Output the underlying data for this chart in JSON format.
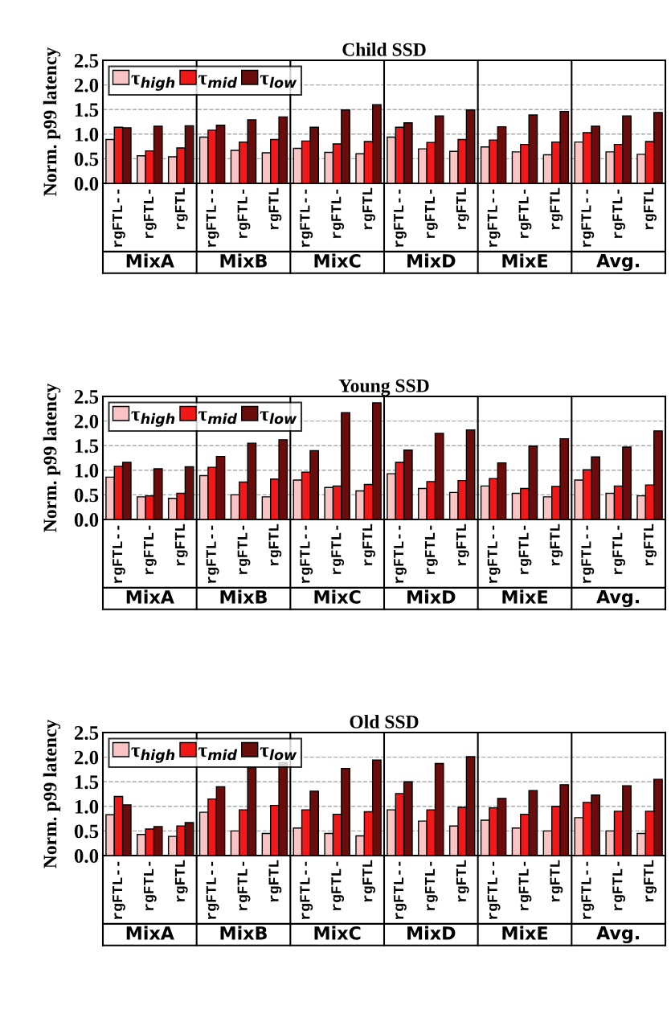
{
  "chart_data": [
    {
      "type": "bar",
      "title": "Child SSD",
      "ylabel": "Norm. p99 latency",
      "ylim": [
        0,
        2.5
      ],
      "yticks": [
        {
          "value": 0,
          "label": "0.0"
        },
        {
          "value": 0.5,
          "label": "0.5"
        },
        {
          "value": 1,
          "label": "1.0"
        },
        {
          "value": 1.5,
          "label": "1.5"
        },
        {
          "value": 2,
          "label": "2.0"
        },
        {
          "value": 2.5,
          "label": "2.5"
        }
      ],
      "grid": "y",
      "legend": "top left",
      "categories": [
        "rgFTL--",
        "rgFTL-",
        "rgFTL",
        "rgFTL--",
        "rgFTL-",
        "rgFTL",
        "rgFTL--",
        "rgFTL-",
        "rgFTL",
        "rgFTL--",
        "rgFTL-",
        "rgFTL",
        "rgFTL--",
        "rgFTL-",
        "rgFTL",
        "rgFTL--",
        "rgFTL-",
        "rgFTL"
      ],
      "annotations": [
        "MixA",
        "MixB",
        "MixC",
        "MixD",
        "MixE",
        "Avg."
      ],
      "series": [
        {
          "name": "τ$_{high}$",
          "color": "#fbc4c4",
          "values": [
            0.89,
            0.56,
            0.54,
            0.94,
            0.67,
            0.62,
            0.71,
            0.63,
            0.6,
            0.94,
            0.7,
            0.65,
            0.74,
            0.64,
            0.58,
            0.84,
            0.64,
            0.59
          ]
        },
        {
          "name": "τ$_{mid}$",
          "color": "#f01818",
          "values": [
            1.14,
            0.66,
            0.72,
            1.08,
            0.84,
            0.89,
            0.86,
            0.8,
            0.85,
            1.14,
            0.83,
            0.89,
            0.88,
            0.79,
            0.84,
            1.03,
            0.79,
            0.85
          ]
        },
        {
          "name": "τ$_{low}$",
          "color": "#6b0c0c",
          "values": [
            1.13,
            1.16,
            1.17,
            1.18,
            1.29,
            1.35,
            1.14,
            1.49,
            1.6,
            1.23,
            1.37,
            1.49,
            1.15,
            1.39,
            1.46,
            1.16,
            1.37,
            1.44
          ]
        }
      ]
    },
    {
      "type": "bar",
      "title": "Young SSD",
      "ylabel": "Norm. p99 latency",
      "ylim": [
        0,
        2.5
      ],
      "yticks": [
        {
          "value": 0,
          "label": "0.0"
        },
        {
          "value": 0.5,
          "label": "0.5"
        },
        {
          "value": 1,
          "label": "1.0"
        },
        {
          "value": 1.5,
          "label": "1.5"
        },
        {
          "value": 2,
          "label": "2.0"
        },
        {
          "value": 2.5,
          "label": "2.5"
        }
      ],
      "grid": "y",
      "legend": "top left",
      "categories": [
        "rgFTL--",
        "rgFTL-",
        "rgFTL",
        "rgFTL--",
        "rgFTL-",
        "rgFTL",
        "rgFTL--",
        "rgFTL-",
        "rgFTL",
        "rgFTL--",
        "rgFTL-",
        "rgFTL",
        "rgFTL--",
        "rgFTL-",
        "rgFTL",
        "rgFTL--",
        "rgFTL-",
        "rgFTL"
      ],
      "annotations": [
        "MixA",
        "MixB",
        "MixC",
        "MixD",
        "MixE",
        "Avg."
      ],
      "series": [
        {
          "name": "τ$_{high}$",
          "color": "#fbc4c4",
          "values": [
            0.86,
            0.46,
            0.43,
            0.89,
            0.5,
            0.46,
            0.8,
            0.65,
            0.58,
            0.93,
            0.63,
            0.55,
            0.68,
            0.53,
            0.46,
            0.8,
            0.53,
            0.48
          ]
        },
        {
          "name": "τ$_{mid}$",
          "color": "#f01818",
          "values": [
            1.08,
            0.48,
            0.53,
            1.06,
            0.76,
            0.82,
            0.96,
            0.68,
            0.71,
            1.16,
            0.77,
            0.79,
            0.83,
            0.63,
            0.67,
            1.01,
            0.68,
            0.7
          ]
        },
        {
          "name": "τ$_{low}$",
          "color": "#6b0c0c",
          "values": [
            1.16,
            1.03,
            1.07,
            1.28,
            1.55,
            1.62,
            1.4,
            2.17,
            2.37,
            1.41,
            1.75,
            1.82,
            1.15,
            1.49,
            1.64,
            1.27,
            1.47,
            1.8
          ]
        }
      ]
    },
    {
      "type": "bar",
      "title": "Old SSD",
      "ylabel": "Norm. p99 latency",
      "ylim": [
        0,
        2.5
      ],
      "yticks": [
        {
          "value": 0,
          "label": "0.0"
        },
        {
          "value": 0.5,
          "label": "0.5"
        },
        {
          "value": 1,
          "label": "1.0"
        },
        {
          "value": 1.5,
          "label": "1.5"
        },
        {
          "value": 2,
          "label": "2.0"
        },
        {
          "value": 2.5,
          "label": "2.5"
        }
      ],
      "grid": "y",
      "legend": "top left",
      "categories": [
        "rgFTL--",
        "rgFTL-",
        "rgFTL",
        "rgFTL--",
        "rgFTL-",
        "rgFTL",
        "rgFTL--",
        "rgFTL-",
        "rgFTL",
        "rgFTL--",
        "rgFTL-",
        "rgFTL",
        "rgFTL--",
        "rgFTL-",
        "rgFTL",
        "rgFTL--",
        "rgFTL-",
        "rgFTL"
      ],
      "annotations": [
        "MixA",
        "MixB",
        "MixC",
        "MixD",
        "MixE",
        "Avg."
      ],
      "series": [
        {
          "name": "τ$_{high}$",
          "color": "#fbc4c4",
          "values": [
            0.83,
            0.43,
            0.39,
            0.88,
            0.5,
            0.45,
            0.56,
            0.45,
            0.4,
            0.93,
            0.7,
            0.6,
            0.72,
            0.56,
            0.5,
            0.77,
            0.5,
            0.45
          ]
        },
        {
          "name": "τ$_{mid}$",
          "color": "#f01818",
          "values": [
            1.2,
            0.54,
            0.6,
            1.15,
            0.93,
            1.02,
            0.93,
            0.84,
            0.89,
            1.26,
            0.93,
            0.98,
            0.97,
            0.84,
            1.0,
            1.08,
            0.9,
            0.9
          ]
        },
        {
          "name": "τ$_{low}$",
          "color": "#6b0c0c",
          "values": [
            1.03,
            0.59,
            0.67,
            1.4,
            1.79,
            1.89,
            1.31,
            1.77,
            1.94,
            1.5,
            1.87,
            2.01,
            1.16,
            1.32,
            1.44,
            1.23,
            1.42,
            1.55
          ]
        }
      ]
    }
  ]
}
